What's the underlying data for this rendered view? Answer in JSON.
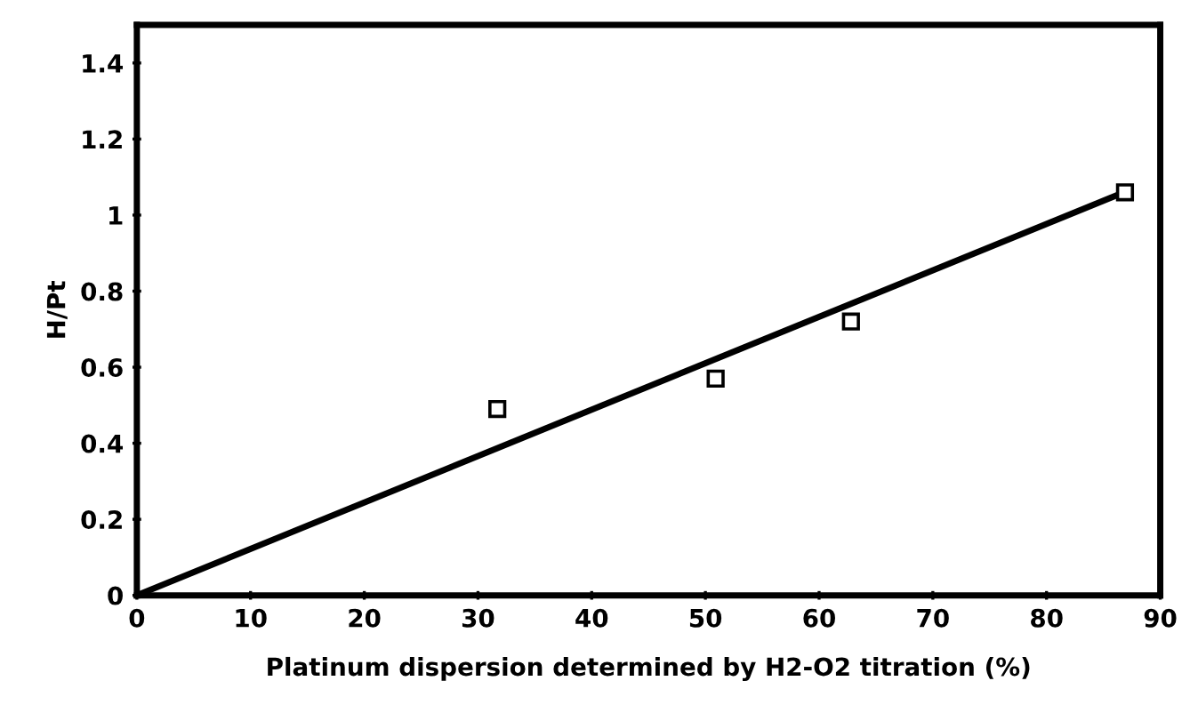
{
  "chart_data": {
    "type": "scatter",
    "xlabel": "Platinum dispersion determined by H2-O2 titration (%)",
    "ylabel": "H/Pt",
    "xlim": [
      0,
      90
    ],
    "ylim": [
      0,
      1.5
    ],
    "xticks": [
      0,
      10,
      20,
      30,
      40,
      50,
      60,
      70,
      80,
      90
    ],
    "yticks": [
      0,
      0.2,
      0.4,
      0.6,
      0.8,
      1,
      1.2,
      1.4
    ],
    "grid": false,
    "legend": false,
    "series": [
      {
        "marker": "square",
        "color": "#000000",
        "x": [
          31.7,
          50.9,
          62.8,
          86.9
        ],
        "values": [
          0.49,
          0.57,
          0.72,
          1.06
        ]
      },
      {
        "type": "line",
        "line_style": "solid",
        "color": "#000000",
        "x": [
          0,
          86
        ],
        "values": [
          0,
          1.05
        ]
      }
    ]
  }
}
